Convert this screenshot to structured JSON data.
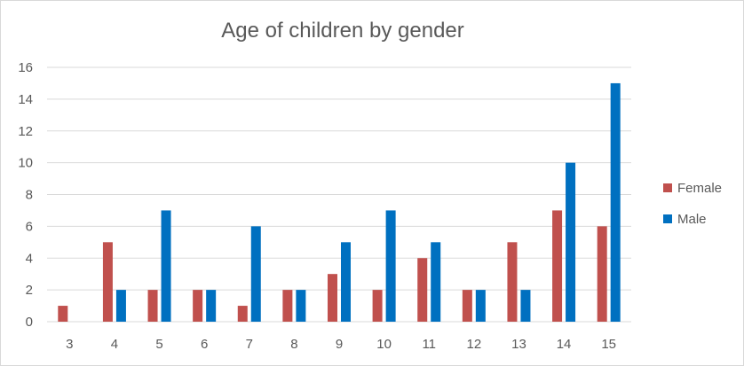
{
  "chart_data": {
    "type": "bar",
    "title": "Age of children by gender",
    "xlabel": "",
    "ylabel": "",
    "categories": [
      "3",
      "4",
      "5",
      "6",
      "7",
      "8",
      "9",
      "10",
      "11",
      "12",
      "13",
      "14",
      "15"
    ],
    "series": [
      {
        "name": "Female",
        "color": "#c0504d",
        "values": [
          1,
          5,
          2,
          2,
          1,
          2,
          3,
          2,
          4,
          2,
          5,
          7,
          6
        ]
      },
      {
        "name": "Male",
        "color": "#0070c0",
        "values": [
          0,
          2,
          7,
          2,
          6,
          2,
          5,
          7,
          5,
          2,
          2,
          10,
          15
        ]
      }
    ],
    "ylim": [
      0,
      16
    ],
    "yticks": [
      0,
      2,
      4,
      6,
      8,
      10,
      12,
      14,
      16
    ],
    "grid": true,
    "gridline_color": "#d9d9d9",
    "legend_position": "right"
  }
}
